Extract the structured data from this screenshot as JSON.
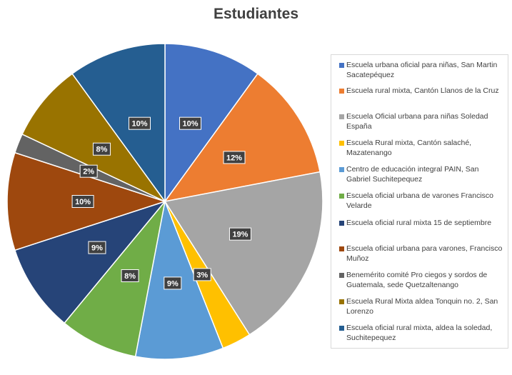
{
  "chart_data": {
    "type": "pie",
    "title": "Estudiantes",
    "slices": [
      {
        "label": "Escuela urbana oficial para niñas, San Martin Sacatepéquez",
        "value": 10,
        "display": "10%",
        "color": "#4472C4"
      },
      {
        "label": "Escuela rural mixta, Cantón Llanos de la Cruz",
        "value": 12,
        "display": "12%",
        "color": "#ED7D31"
      },
      {
        "label": "Escuela Oficial urbana para niñas Soledad España",
        "value": 19,
        "display": "19%",
        "color": "#A5A5A5"
      },
      {
        "label": "Escuela Rural mixta, Cantón salaché, Mazatenango",
        "value": 3,
        "display": "3%",
        "color": "#FFC000"
      },
      {
        "label": "Centro de educación integral PAIN, San Gabriel Suchitepequez",
        "value": 9,
        "display": "9%",
        "color": "#5B9BD5"
      },
      {
        "label": "Escuela oficial urbana de varones Francisco Velarde",
        "value": 8,
        "display": "8%",
        "color": "#70AD47"
      },
      {
        "label": "Escuela oficial rural mixta 15 de septiembre",
        "value": 9,
        "display": "9%",
        "color": "#264478"
      },
      {
        "label": "Escuela oficial urbana para varones, Francisco Muñoz",
        "value": 10,
        "display": "10%",
        "color": "#9E480E"
      },
      {
        "label": "Benemérito comité Pro ciegos y sordos de Guatemala, sede Quetzaltenango",
        "value": 2,
        "display": "2%",
        "color": "#636363"
      },
      {
        "label": "Escuela Rural Mixta aldea Tonquin no. 2, San Lorenzo",
        "value": 8,
        "display": "8%",
        "color": "#997300"
      },
      {
        "label": "Escuela oficial rural mixta, aldea la soledad, Suchitepequez",
        "value": 10,
        "display": "10%",
        "color": "#255E91"
      }
    ],
    "legend_position": "right"
  }
}
